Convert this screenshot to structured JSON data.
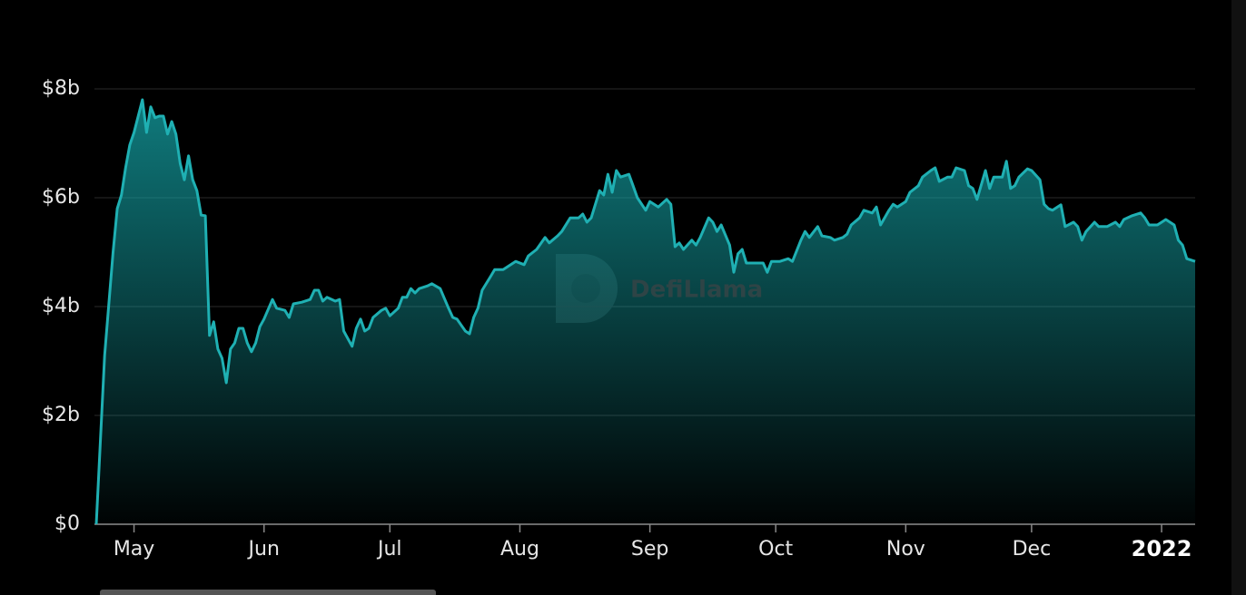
{
  "chart_data": {
    "type": "area",
    "watermark": "DefiLlama",
    "x": [
      -9,
      -7,
      -5,
      -4,
      -3,
      -2,
      -1,
      0,
      2,
      3,
      4,
      5,
      6,
      7,
      8,
      9,
      10,
      11,
      12,
      13,
      14,
      15,
      16,
      17,
      18,
      19,
      20,
      21,
      22,
      23,
      24,
      25,
      26,
      27,
      28,
      29,
      30,
      31,
      33,
      34,
      36,
      37,
      38,
      40,
      42,
      43,
      44,
      45,
      46,
      48,
      49,
      50,
      52,
      53,
      54,
      55,
      56,
      57,
      59,
      60,
      61,
      63,
      64,
      65,
      66,
      67,
      68,
      70,
      71,
      73,
      75,
      76,
      77,
      79,
      80,
      81,
      82,
      83,
      85,
      86,
      88,
      91,
      93,
      94,
      96,
      98,
      99,
      101,
      102,
      104,
      106,
      107,
      108,
      109,
      110,
      111,
      112,
      113,
      114,
      115,
      116,
      118,
      119,
      120,
      122,
      123,
      125,
      127,
      128,
      129,
      130,
      131,
      133,
      134,
      135,
      137,
      138,
      139,
      140,
      142,
      143,
      144,
      145,
      146,
      149,
      150,
      151,
      152,
      154,
      156,
      157,
      159,
      160,
      161,
      163,
      164,
      166,
      167,
      169,
      170,
      171,
      173,
      174,
      176,
      177,
      178,
      180,
      181,
      182,
      184,
      185,
      187,
      188,
      190,
      191,
      192,
      194,
      195,
      196,
      198,
      199,
      200,
      201,
      203,
      204,
      205,
      207,
      208,
      209,
      210,
      211,
      213,
      214,
      216,
      217,
      218,
      219,
      221,
      222,
      224,
      225,
      226,
      227,
      229,
      230,
      232,
      234,
      235,
      236,
      238,
      240,
      241,
      242,
      244,
      245,
      246,
      247,
      248,
      249,
      250,
      251,
      253
    ],
    "values": [
      0,
      3.1,
      5.0,
      5.8,
      6.05,
      6.55,
      6.97,
      7.2,
      7.8,
      7.2,
      7.67,
      7.47,
      7.5,
      7.5,
      7.17,
      7.4,
      7.17,
      6.63,
      6.33,
      6.77,
      6.33,
      6.13,
      5.68,
      5.67,
      3.47,
      3.72,
      3.22,
      3.05,
      2.6,
      3.22,
      3.33,
      3.6,
      3.6,
      3.33,
      3.17,
      3.33,
      3.63,
      3.77,
      4.13,
      3.97,
      3.93,
      3.8,
      4.05,
      4.08,
      4.13,
      4.3,
      4.3,
      4.1,
      4.17,
      4.1,
      4.13,
      3.55,
      3.27,
      3.6,
      3.77,
      3.55,
      3.6,
      3.8,
      3.93,
      3.97,
      3.83,
      3.97,
      4.17,
      4.17,
      4.33,
      4.25,
      4.33,
      4.38,
      4.42,
      4.33,
      3.97,
      3.8,
      3.77,
      3.55,
      3.5,
      3.8,
      3.97,
      4.3,
      4.55,
      4.68,
      4.68,
      4.83,
      4.77,
      4.93,
      5.05,
      5.27,
      5.17,
      5.3,
      5.38,
      5.63,
      5.63,
      5.7,
      5.55,
      5.63,
      5.88,
      6.13,
      6.05,
      6.43,
      6.1,
      6.5,
      6.38,
      6.43,
      6.22,
      6.0,
      5.77,
      5.93,
      5.83,
      5.97,
      5.88,
      5.1,
      5.17,
      5.05,
      5.22,
      5.13,
      5.27,
      5.63,
      5.55,
      5.38,
      5.5,
      5.13,
      4.63,
      4.97,
      5.05,
      4.8,
      4.8,
      4.8,
      4.63,
      4.83,
      4.83,
      4.88,
      4.83,
      5.22,
      5.38,
      5.27,
      5.47,
      5.3,
      5.27,
      5.22,
      5.27,
      5.33,
      5.5,
      5.63,
      5.77,
      5.72,
      5.83,
      5.5,
      5.77,
      5.88,
      5.83,
      5.93,
      6.1,
      6.22,
      6.38,
      6.5,
      6.55,
      6.3,
      6.38,
      6.38,
      6.55,
      6.5,
      6.22,
      6.17,
      5.97,
      6.5,
      6.17,
      6.38,
      6.38,
      6.67,
      6.17,
      6.22,
      6.38,
      6.53,
      6.5,
      6.33,
      5.88,
      5.8,
      5.77,
      5.87,
      5.47,
      5.55,
      5.47,
      5.22,
      5.38,
      5.55,
      5.47,
      5.47,
      5.55,
      5.47,
      5.6,
      5.67,
      5.72,
      5.63,
      5.5,
      5.5,
      5.55,
      5.6,
      5.55,
      5.5,
      5.22,
      5.13,
      4.88,
      4.83
    ],
    "color": "#1fb0b3",
    "xlim": [
      -9,
      253
    ],
    "xticks": [
      {
        "value": 0,
        "label": "May"
      },
      {
        "value": 31,
        "label": "Jun"
      },
      {
        "value": 61,
        "label": "Jul"
      },
      {
        "value": 92,
        "label": "Aug"
      },
      {
        "value": 123,
        "label": "Sep"
      },
      {
        "value": 153,
        "label": "Oct"
      },
      {
        "value": 184,
        "label": "Nov"
      },
      {
        "value": 214,
        "label": "Dec"
      },
      {
        "value": 245,
        "label": "2022"
      }
    ],
    "ylim": [
      0,
      8
    ],
    "yticks": [
      {
        "value": 0,
        "label": "$0"
      },
      {
        "value": 2,
        "label": "$2b"
      },
      {
        "value": 4,
        "label": "$4b"
      },
      {
        "value": 6,
        "label": "$6b"
      },
      {
        "value": 8,
        "label": "$8b"
      }
    ],
    "grid": true
  }
}
